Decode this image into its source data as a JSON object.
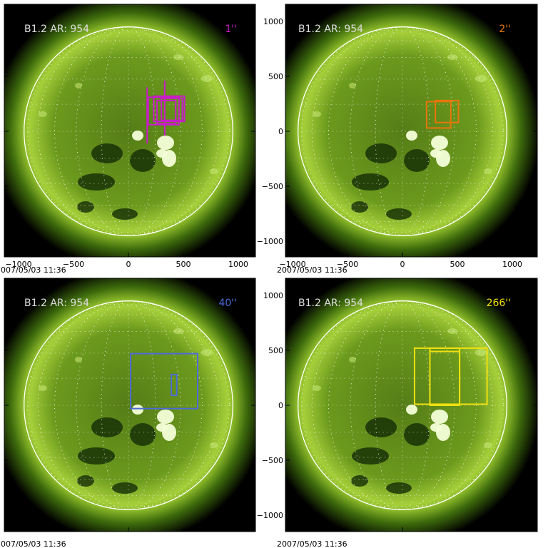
{
  "colors": {
    "background": "#ffffff",
    "plot_background": "#000000",
    "sun_green": "#6fa11c",
    "limb": "#ffffff",
    "label_text": "#dddddd"
  },
  "panels": [
    {
      "id": "panel-0",
      "info_label": "B1.2 AR:  954",
      "resolution_label": "1''",
      "resolution_color": "#c81cc8",
      "timestamp": "2007/05/03 11:36",
      "show_left_axis": false,
      "show_bottom_axis": true,
      "boxes": [
        {
          "x0": 180,
          "x1": 460,
          "y0": 60,
          "y1": 310
        },
        {
          "x0": 230,
          "x1": 510,
          "y0": 90,
          "y1": 320
        },
        {
          "x0": 260,
          "x1": 430,
          "y0": 70,
          "y1": 280
        },
        {
          "x0": 300,
          "x1": 490,
          "y0": 100,
          "y1": 300
        }
      ],
      "lines": [
        {
          "x": 170,
          "y0": -110,
          "y1": 400
        },
        {
          "x": 330,
          "y0": -40,
          "y1": 460
        }
      ]
    },
    {
      "id": "panel-1",
      "info_label": "B1.2 AR:  954",
      "resolution_label": "2''",
      "resolution_color": "#e8760c",
      "timestamp": "2007/05/03 11:36",
      "show_left_axis": true,
      "show_bottom_axis": true,
      "boxes": [
        {
          "x0": 220,
          "x1": 440,
          "y0": 30,
          "y1": 270
        },
        {
          "x0": 300,
          "x1": 510,
          "y0": 80,
          "y1": 280
        }
      ],
      "lines": []
    },
    {
      "id": "panel-2",
      "info_label": "B1.2 AR:  954",
      "resolution_label": "40''",
      "resolution_color": "#4d6bd6",
      "timestamp": "2007/05/03 11:36",
      "show_left_axis": false,
      "show_bottom_axis": false,
      "boxes": [
        {
          "x0": 20,
          "x1": 630,
          "y0": -30,
          "y1": 470
        },
        {
          "x0": 390,
          "x1": 440,
          "y0": 90,
          "y1": 280
        }
      ],
      "lines": []
    },
    {
      "id": "panel-3",
      "info_label": "B1.2 AR:  954",
      "resolution_label": "266''",
      "resolution_color": "#f0e010",
      "timestamp": "2007/05/03 11:36",
      "show_left_axis": true,
      "show_bottom_axis": false,
      "boxes": [
        {
          "x0": 110,
          "x1": 520,
          "y0": 10,
          "y1": 520
        },
        {
          "x0": 250,
          "x1": 520,
          "y0": 0,
          "y1": 490
        },
        {
          "x0": 250,
          "x1": 770,
          "y0": 10,
          "y1": 520
        }
      ],
      "lines": []
    }
  ],
  "axis": {
    "x_ticks": [
      "−1000",
      "−500",
      "0",
      "500",
      "1000"
    ],
    "y_ticks": [
      "1000",
      "500",
      "0",
      "−500",
      "−1000"
    ],
    "x_tick_values": [
      -1000,
      -500,
      0,
      500,
      1000
    ],
    "y_tick_values": [
      1000,
      500,
      0,
      -500,
      -1000
    ],
    "solar_radius_arcsec": 950
  }
}
